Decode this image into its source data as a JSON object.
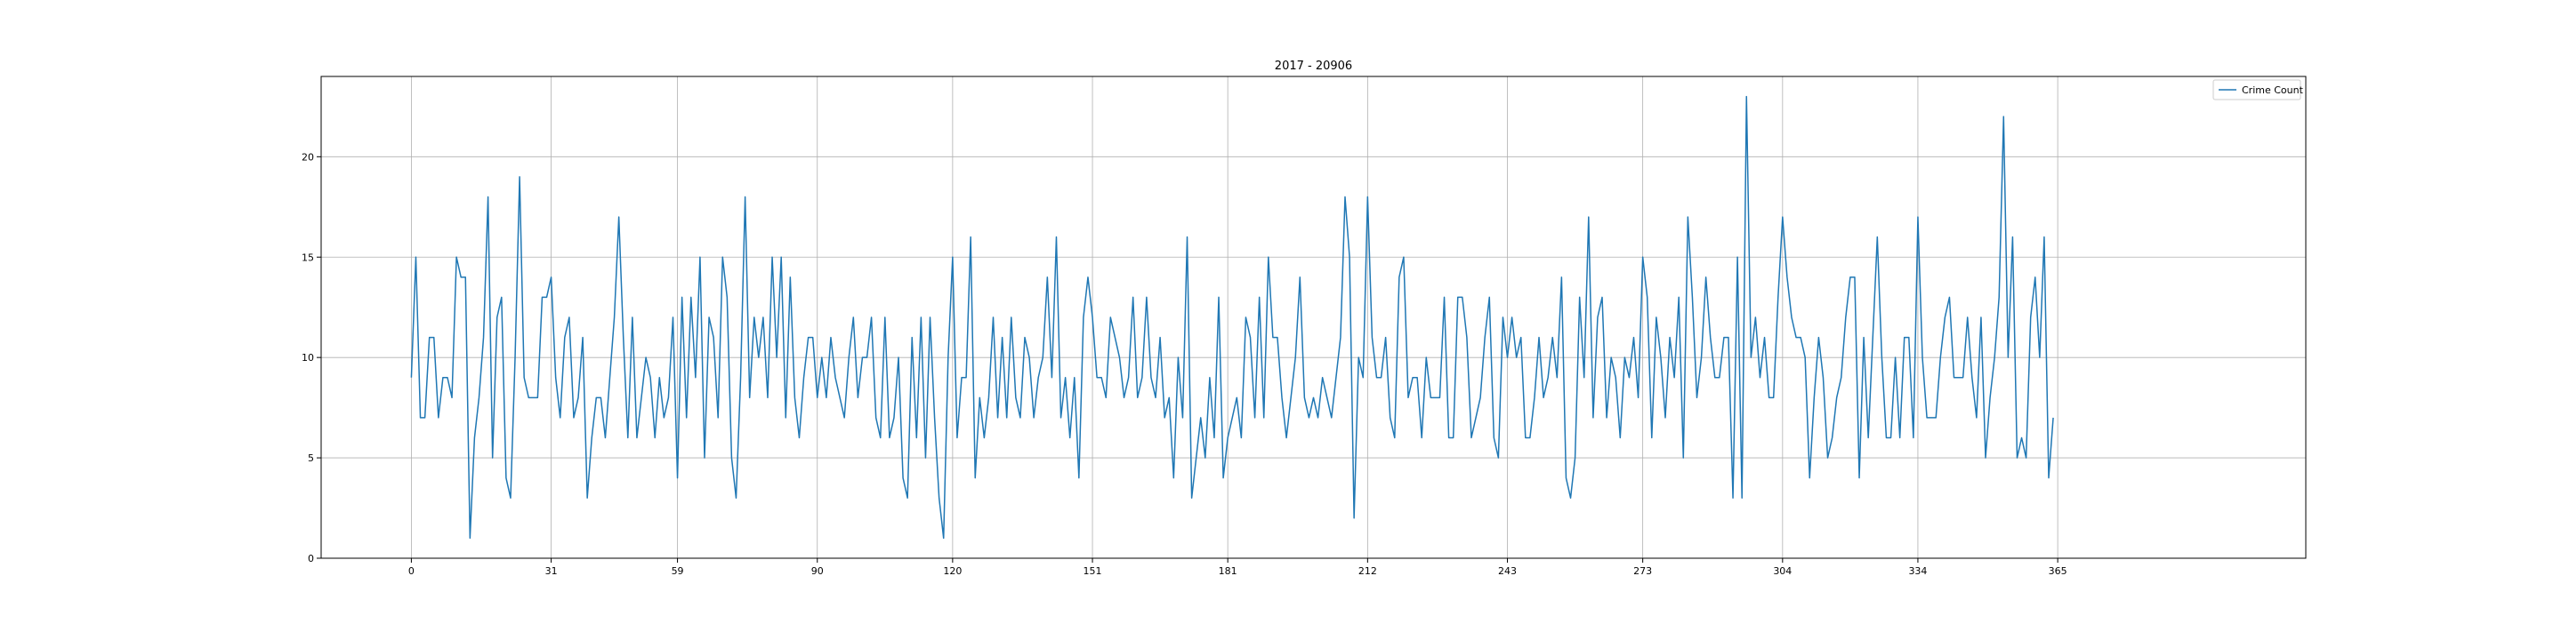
{
  "chart_data": {
    "type": "line",
    "title": "2017 - 20906",
    "xlabel": "",
    "ylabel": "",
    "xlim": [
      -20,
      420
    ],
    "ylim": [
      0,
      24
    ],
    "xticks": [
      0,
      31,
      59,
      90,
      120,
      151,
      181,
      212,
      243,
      273,
      304,
      334,
      365
    ],
    "yticks": [
      0,
      5,
      10,
      15,
      20
    ],
    "grid": true,
    "legend_position": "top-right",
    "series_color": "#1f77b4",
    "series": [
      {
        "name": "Crime Count",
        "x_start": 0,
        "x_step": 1,
        "values": [
          9,
          15,
          7,
          7,
          11,
          11,
          7,
          9,
          9,
          8,
          15,
          14,
          14,
          1,
          6,
          8,
          11,
          18,
          5,
          12,
          13,
          4,
          3,
          10,
          19,
          9,
          8,
          8,
          8,
          13,
          13,
          14,
          9,
          7,
          11,
          12,
          7,
          8,
          11,
          3,
          6,
          8,
          8,
          6,
          9,
          12,
          17,
          11,
          6,
          12,
          6,
          8,
          10,
          9,
          6,
          9,
          7,
          8,
          12,
          4,
          13,
          7,
          13,
          9,
          15,
          5,
          12,
          11,
          7,
          15,
          13,
          5,
          3,
          9,
          18,
          8,
          12,
          10,
          12,
          8,
          15,
          10,
          15,
          7,
          14,
          8,
          6,
          9,
          11,
          11,
          8,
          10,
          8,
          11,
          9,
          8,
          7,
          10,
          12,
          8,
          10,
          10,
          12,
          7,
          6,
          12,
          6,
          7,
          10,
          4,
          3,
          11,
          6,
          12,
          5,
          12,
          7,
          3,
          1,
          10,
          15,
          6,
          9,
          9,
          16,
          4,
          8,
          6,
          8,
          12,
          7,
          11,
          7,
          12,
          8,
          7,
          11,
          10,
          7,
          9,
          10,
          14,
          9,
          16,
          7,
          9,
          6,
          9,
          4,
          12,
          14,
          12,
          9,
          9,
          8,
          12,
          11,
          10,
          8,
          9,
          13,
          8,
          9,
          13,
          9,
          8,
          11,
          7,
          8,
          4,
          10,
          7,
          16,
          3,
          5,
          7,
          5,
          9,
          6,
          13,
          4,
          6,
          7,
          8,
          6,
          12,
          11,
          7,
          13,
          7,
          15,
          11,
          11,
          8,
          6,
          8,
          10,
          14,
          8,
          7,
          8,
          7,
          9,
          8,
          7,
          9,
          11,
          18,
          15,
          2,
          10,
          9,
          18,
          11,
          9,
          9,
          11,
          7,
          6,
          14,
          15,
          8,
          9,
          9,
          6,
          10,
          8,
          8,
          8,
          13,
          6,
          6,
          13,
          13,
          11,
          6,
          7,
          8,
          11,
          13,
          6,
          5,
          12,
          10,
          12,
          10,
          11,
          6,
          6,
          8,
          11,
          8,
          9,
          11,
          9,
          14,
          4,
          3,
          5,
          13,
          9,
          17,
          7,
          12,
          13,
          7,
          10,
          9,
          6,
          10,
          9,
          11,
          8,
          15,
          13,
          6,
          12,
          10,
          7,
          11,
          9,
          13,
          5,
          17,
          13,
          8,
          10,
          14,
          11,
          9,
          9,
          11,
          11,
          3,
          15,
          3,
          23,
          10,
          12,
          9,
          11,
          8,
          8,
          13,
          17,
          14,
          12,
          11,
          11,
          10,
          4,
          8,
          11,
          9,
          5,
          6,
          8,
          9,
          12,
          14,
          14,
          4,
          11,
          6,
          11,
          16,
          10,
          6,
          6,
          10,
          6,
          11,
          11,
          6,
          17,
          10,
          7,
          7,
          7,
          10,
          12,
          13,
          9,
          9,
          9,
          12,
          9,
          7,
          12,
          5,
          8,
          10,
          13,
          22,
          10,
          16,
          5,
          6,
          5,
          12,
          14,
          10,
          16,
          4,
          7
        ]
      }
    ]
  }
}
